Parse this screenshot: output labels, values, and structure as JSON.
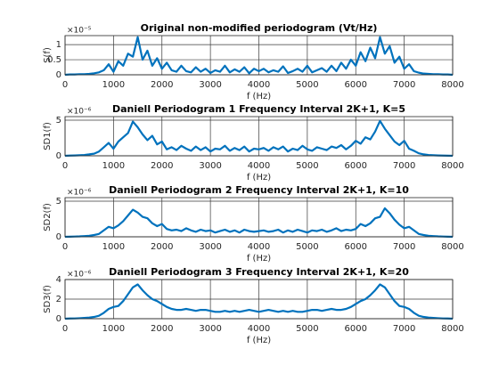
{
  "chart_data": [
    {
      "type": "line",
      "title": "Original non-modified periodogram (Vt/Hz)",
      "xlabel": "f (Hz)",
      "ylabel": "S(f)",
      "y_exponent_label": "×10⁻⁵",
      "color": "#0072bd",
      "grid": true,
      "xlim": [
        0,
        8000
      ],
      "xticks": [
        0,
        1000,
        2000,
        3000,
        4000,
        5000,
        6000,
        7000,
        8000
      ],
      "ylim": [
        0,
        1.3
      ],
      "yticks": [
        0,
        0.5,
        1
      ],
      "x": [
        0,
        100,
        200,
        300,
        400,
        500,
        600,
        700,
        800,
        900,
        1000,
        1100,
        1200,
        1300,
        1400,
        1500,
        1600,
        1700,
        1800,
        1900,
        2000,
        2100,
        2200,
        2300,
        2400,
        2500,
        2600,
        2700,
        2800,
        2900,
        3000,
        3100,
        3200,
        3300,
        3400,
        3500,
        3600,
        3700,
        3800,
        3900,
        4000,
        4100,
        4200,
        4300,
        4400,
        4500,
        4600,
        4700,
        4800,
        4900,
        5000,
        5100,
        5200,
        5300,
        5400,
        5500,
        5600,
        5700,
        5800,
        5900,
        6000,
        6100,
        6200,
        6300,
        6400,
        6500,
        6600,
        6700,
        6800,
        6900,
        7000,
        7100,
        7200,
        7300,
        7400,
        7500,
        7600,
        7700,
        7800,
        7900,
        8000
      ],
      "values": [
        0,
        0.01,
        0.01,
        0.02,
        0.02,
        0.03,
        0.05,
        0.08,
        0.15,
        0.35,
        0.1,
        0.45,
        0.3,
        0.7,
        0.6,
        1.25,
        0.5,
        0.8,
        0.3,
        0.55,
        0.2,
        0.4,
        0.15,
        0.1,
        0.3,
        0.12,
        0.08,
        0.25,
        0.1,
        0.2,
        0.06,
        0.15,
        0.1,
        0.3,
        0.08,
        0.18,
        0.1,
        0.25,
        0.05,
        0.2,
        0.12,
        0.2,
        0.08,
        0.15,
        0.1,
        0.28,
        0.06,
        0.12,
        0.2,
        0.1,
        0.3,
        0.08,
        0.15,
        0.22,
        0.1,
        0.3,
        0.12,
        0.4,
        0.2,
        0.5,
        0.3,
        0.75,
        0.45,
        0.9,
        0.55,
        1.25,
        0.7,
        0.95,
        0.4,
        0.6,
        0.2,
        0.35,
        0.12,
        0.07,
        0.04,
        0.03,
        0.02,
        0.02,
        0.01,
        0.01,
        0
      ]
    },
    {
      "type": "line",
      "title": "Daniell Periodogram 1 Frequency Interval 2K+1, K=5",
      "xlabel": "f (Hz)",
      "ylabel": "SD1(f)",
      "y_exponent_label": "×10⁻⁶",
      "color": "#0072bd",
      "grid": true,
      "xlim": [
        0,
        8000
      ],
      "xticks": [
        0,
        1000,
        2000,
        3000,
        4000,
        5000,
        6000,
        7000,
        8000
      ],
      "ylim": [
        0,
        5.5
      ],
      "yticks": [
        0,
        5
      ],
      "x": [
        0,
        100,
        200,
        300,
        400,
        500,
        600,
        700,
        800,
        900,
        1000,
        1100,
        1200,
        1300,
        1400,
        1500,
        1600,
        1700,
        1800,
        1900,
        2000,
        2100,
        2200,
        2300,
        2400,
        2500,
        2600,
        2700,
        2800,
        2900,
        3000,
        3100,
        3200,
        3300,
        3400,
        3500,
        3600,
        3700,
        3800,
        3900,
        4000,
        4100,
        4200,
        4300,
        4400,
        4500,
        4600,
        4700,
        4800,
        4900,
        5000,
        5100,
        5200,
        5300,
        5400,
        5500,
        5600,
        5700,
        5800,
        5900,
        6000,
        6100,
        6200,
        6300,
        6400,
        6500,
        6600,
        6700,
        6800,
        6900,
        7000,
        7100,
        7200,
        7300,
        7400,
        7500,
        7600,
        7700,
        7800,
        7900,
        8000
      ],
      "values": [
        0,
        0.03,
        0.05,
        0.08,
        0.12,
        0.2,
        0.3,
        0.6,
        1.2,
        1.8,
        1.0,
        2.0,
        2.6,
        3.2,
        4.8,
        4.0,
        3.0,
        2.2,
        2.8,
        1.6,
        2.0,
        0.9,
        1.2,
        0.8,
        1.4,
        1.0,
        0.7,
        1.3,
        0.8,
        1.2,
        0.6,
        1.0,
        0.9,
        1.4,
        0.7,
        1.1,
        0.8,
        1.3,
        0.6,
        1.0,
        0.9,
        1.1,
        0.7,
        1.2,
        0.9,
        1.3,
        0.6,
        1.0,
        0.8,
        1.4,
        0.9,
        0.7,
        1.2,
        1.0,
        0.8,
        1.3,
        1.1,
        1.5,
        0.9,
        1.4,
        2.1,
        1.7,
        2.6,
        2.3,
        3.4,
        4.9,
        3.8,
        2.9,
        2.0,
        1.5,
        2.1,
        1.0,
        0.7,
        0.35,
        0.2,
        0.12,
        0.08,
        0.05,
        0.03,
        0.02,
        0
      ]
    },
    {
      "type": "line",
      "title": "Daniell Periodogram 2 Frequency Interval 2K+1, K=10",
      "xlabel": "f (Hz)",
      "ylabel": "SD2(f)",
      "y_exponent_label": "×10⁻⁶",
      "color": "#0072bd",
      "grid": true,
      "xlim": [
        0,
        8000
      ],
      "xticks": [
        0,
        1000,
        2000,
        3000,
        4000,
        5000,
        6000,
        7000,
        8000
      ],
      "ylim": [
        0,
        5.5
      ],
      "yticks": [
        0,
        5
      ],
      "x": [
        0,
        100,
        200,
        300,
        400,
        500,
        600,
        700,
        800,
        900,
        1000,
        1100,
        1200,
        1300,
        1400,
        1500,
        1600,
        1700,
        1800,
        1900,
        2000,
        2100,
        2200,
        2300,
        2400,
        2500,
        2600,
        2700,
        2800,
        2900,
        3000,
        3100,
        3200,
        3300,
        3400,
        3500,
        3600,
        3700,
        3800,
        3900,
        4000,
        4100,
        4200,
        4300,
        4400,
        4500,
        4600,
        4700,
        4800,
        4900,
        5000,
        5100,
        5200,
        5300,
        5400,
        5500,
        5600,
        5700,
        5800,
        5900,
        6000,
        6100,
        6200,
        6300,
        6400,
        6500,
        6600,
        6700,
        6800,
        6900,
        7000,
        7100,
        7200,
        7300,
        7400,
        7500,
        7600,
        7700,
        7800,
        7900,
        8000
      ],
      "values": [
        0,
        0.02,
        0.04,
        0.06,
        0.1,
        0.15,
        0.25,
        0.4,
        0.9,
        1.4,
        1.2,
        1.6,
        2.2,
        3.0,
        3.8,
        3.4,
        2.8,
        2.6,
        1.9,
        1.5,
        1.8,
        1.1,
        0.9,
        1.0,
        0.8,
        1.2,
        0.9,
        0.7,
        1.0,
        0.8,
        0.9,
        0.6,
        0.8,
        1.0,
        0.7,
        0.9,
        0.6,
        1.0,
        0.8,
        0.7,
        0.8,
        0.9,
        0.7,
        0.8,
        1.0,
        0.6,
        0.9,
        0.7,
        1.0,
        0.8,
        0.6,
        0.9,
        0.8,
        1.0,
        0.7,
        0.9,
        1.2,
        0.8,
        1.0,
        0.9,
        1.1,
        1.8,
        1.5,
        1.9,
        2.6,
        2.8,
        4.0,
        3.3,
        2.4,
        1.7,
        1.2,
        1.4,
        0.9,
        0.4,
        0.25,
        0.15,
        0.1,
        0.06,
        0.04,
        0.02,
        0
      ]
    },
    {
      "type": "line",
      "title": "Daniell Periodogram 3 Frequency Interval 2K+1, K=20",
      "xlabel": "f (Hz)",
      "ylabel": "SD3(f)",
      "y_exponent_label": "×10⁻⁶",
      "color": "#0072bd",
      "grid": true,
      "xlim": [
        0,
        8000
      ],
      "xticks": [
        0,
        1000,
        2000,
        3000,
        4000,
        5000,
        6000,
        7000,
        8000
      ],
      "ylim": [
        0,
        4
      ],
      "yticks": [
        0,
        2,
        4
      ],
      "x": [
        0,
        100,
        200,
        300,
        400,
        500,
        600,
        700,
        800,
        900,
        1000,
        1100,
        1200,
        1300,
        1400,
        1500,
        1600,
        1700,
        1800,
        1900,
        2000,
        2100,
        2200,
        2300,
        2400,
        2500,
        2600,
        2700,
        2800,
        2900,
        3000,
        3100,
        3200,
        3300,
        3400,
        3500,
        3600,
        3700,
        3800,
        3900,
        4000,
        4100,
        4200,
        4300,
        4400,
        4500,
        4600,
        4700,
        4800,
        4900,
        5000,
        5100,
        5200,
        5300,
        5400,
        5500,
        5600,
        5700,
        5800,
        5900,
        6000,
        6100,
        6200,
        6300,
        6400,
        6500,
        6600,
        6700,
        6800,
        6900,
        7000,
        7100,
        7200,
        7300,
        7400,
        7500,
        7600,
        7700,
        7800,
        7900,
        8000
      ],
      "values": [
        0,
        0.02,
        0.03,
        0.05,
        0.08,
        0.12,
        0.18,
        0.3,
        0.6,
        1.0,
        1.2,
        1.3,
        1.8,
        2.5,
        3.2,
        3.5,
        2.9,
        2.4,
        2.0,
        1.8,
        1.5,
        1.2,
        1.0,
        0.9,
        0.9,
        1.0,
        0.9,
        0.8,
        0.9,
        0.9,
        0.8,
        0.7,
        0.7,
        0.8,
        0.7,
        0.8,
        0.7,
        0.8,
        0.9,
        0.8,
        0.7,
        0.8,
        0.9,
        0.8,
        0.7,
        0.8,
        0.7,
        0.8,
        0.7,
        0.7,
        0.8,
        0.9,
        0.9,
        0.8,
        0.9,
        1.0,
        0.9,
        0.9,
        1.0,
        1.2,
        1.5,
        1.8,
        2.0,
        2.4,
        2.9,
        3.5,
        3.2,
        2.5,
        1.8,
        1.3,
        1.2,
        1.0,
        0.6,
        0.3,
        0.18,
        0.12,
        0.08,
        0.05,
        0.03,
        0.02,
        0
      ]
    }
  ]
}
